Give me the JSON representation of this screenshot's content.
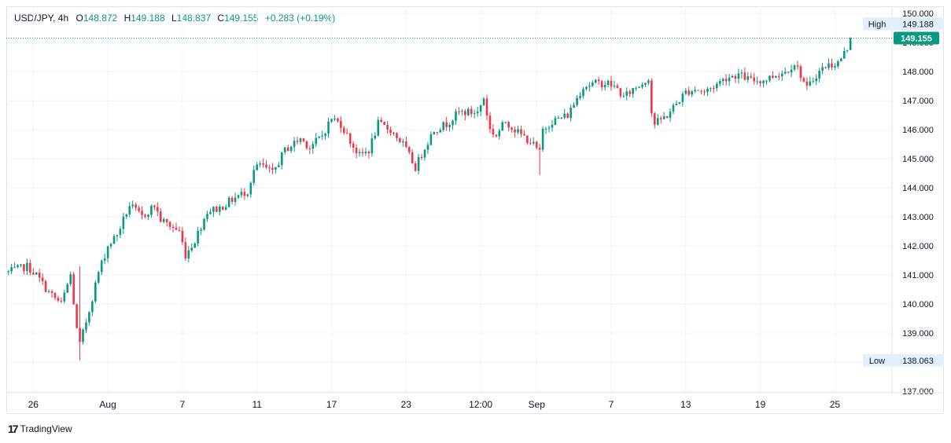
{
  "header": {
    "symbol": "USD/JPY, 4h",
    "open_label": "O",
    "open": "148.872",
    "high_label": "H",
    "high": "149.188",
    "low_label": "L",
    "low": "148.837",
    "close_label": "C",
    "close": "149.155",
    "change": "+0.283 (+0.19%)"
  },
  "footer": {
    "logo_glyph": "17",
    "brand": "TradingView"
  },
  "colors": {
    "up": "#089981",
    "down": "#f23645",
    "grid": "#f0f3fa",
    "text": "#131722",
    "badge_bg": "#e3effd"
  },
  "chart_data": {
    "type": "candlestick",
    "title": "",
    "y_ticks": [
      "137.000",
      "138.000",
      "139.000",
      "140.000",
      "141.000",
      "142.000",
      "143.000",
      "144.000",
      "145.000",
      "146.000",
      "147.000",
      "148.000",
      "149.000",
      "150.000"
    ],
    "ylim": [
      136.95,
      150.25
    ],
    "x_ticks": [
      {
        "label": "26",
        "bar": 8
      },
      {
        "label": "Aug",
        "bar": 32
      },
      {
        "label": "7",
        "bar": 56
      },
      {
        "label": "11",
        "bar": 80
      },
      {
        "label": "17",
        "bar": 104
      },
      {
        "label": "23",
        "bar": 128
      },
      {
        "label": "12:00",
        "bar": 152
      },
      {
        "label": "Sep",
        "bar": 170
      },
      {
        "label": "7",
        "bar": 194
      },
      {
        "label": "13",
        "bar": 218
      },
      {
        "label": "19",
        "bar": 242
      },
      {
        "label": "25",
        "bar": 266
      }
    ],
    "anchors": [
      [
        0,
        141.1
      ],
      [
        6,
        141.3
      ],
      [
        9,
        141.0
      ],
      [
        13,
        140.4
      ],
      [
        17,
        140.0
      ],
      [
        20,
        141.0
      ],
      [
        22,
        139.1
      ],
      [
        23,
        138.6
      ],
      [
        26,
        139.8
      ],
      [
        29,
        141.1
      ],
      [
        32,
        142.0
      ],
      [
        35,
        142.4
      ],
      [
        39,
        143.4
      ],
      [
        43,
        143.0
      ],
      [
        47,
        143.4
      ],
      [
        49,
        142.9
      ],
      [
        55,
        142.5
      ],
      [
        57,
        141.7
      ],
      [
        60,
        142.2
      ],
      [
        64,
        143.2
      ],
      [
        68,
        143.3
      ],
      [
        72,
        143.6
      ],
      [
        77,
        143.9
      ],
      [
        79,
        144.6
      ],
      [
        81,
        144.8
      ],
      [
        85,
        144.5
      ],
      [
        89,
        145.3
      ],
      [
        94,
        145.7
      ],
      [
        97,
        145.4
      ],
      [
        101,
        145.8
      ],
      [
        104,
        146.4
      ],
      [
        107,
        146.2
      ],
      [
        110,
        145.6
      ],
      [
        113,
        145.1
      ],
      [
        116,
        145.3
      ],
      [
        119,
        146.2
      ],
      [
        123,
        146.0
      ],
      [
        127,
        145.5
      ],
      [
        131,
        144.7
      ],
      [
        134,
        145.4
      ],
      [
        137,
        146.0
      ],
      [
        141,
        146.2
      ],
      [
        145,
        146.6
      ],
      [
        151,
        146.6
      ],
      [
        153,
        147.1
      ],
      [
        155,
        146.0
      ],
      [
        157,
        145.8
      ],
      [
        160,
        146.3
      ],
      [
        164,
        145.9
      ],
      [
        168,
        145.6
      ],
      [
        171,
        145.2
      ],
      [
        172,
        146.0
      ],
      [
        175,
        146.3
      ],
      [
        180,
        146.5
      ],
      [
        183,
        147.1
      ],
      [
        185,
        147.5
      ],
      [
        189,
        147.6
      ],
      [
        193,
        147.6
      ],
      [
        196,
        147.4
      ],
      [
        198,
        147.1
      ],
      [
        201,
        147.4
      ],
      [
        204,
        147.6
      ],
      [
        206,
        147.8
      ],
      [
        207,
        146.6
      ],
      [
        208,
        146.2
      ],
      [
        212,
        146.5
      ],
      [
        215,
        146.9
      ],
      [
        218,
        147.3
      ],
      [
        221,
        147.4
      ],
      [
        224,
        147.3
      ],
      [
        227,
        147.5
      ],
      [
        231,
        147.8
      ],
      [
        235,
        147.9
      ],
      [
        239,
        147.7
      ],
      [
        243,
        147.7
      ],
      [
        247,
        147.9
      ],
      [
        250,
        148.0
      ],
      [
        253,
        148.3
      ],
      [
        255,
        147.9
      ],
      [
        257,
        147.4
      ],
      [
        260,
        147.9
      ],
      [
        263,
        148.2
      ],
      [
        267,
        148.3
      ],
      [
        270,
        148.8
      ],
      [
        271,
        149.155
      ]
    ],
    "series": [
      {
        "name": "",
        "last": 149.155,
        "high": 149.188,
        "low": 138.063
      }
    ],
    "annotations": [
      {
        "label": "High",
        "value": "149.188"
      },
      {
        "label": "Low",
        "value": "138.063"
      },
      {
        "label": "",
        "value": "149.155"
      }
    ],
    "grid": true,
    "legend": "top-left"
  }
}
